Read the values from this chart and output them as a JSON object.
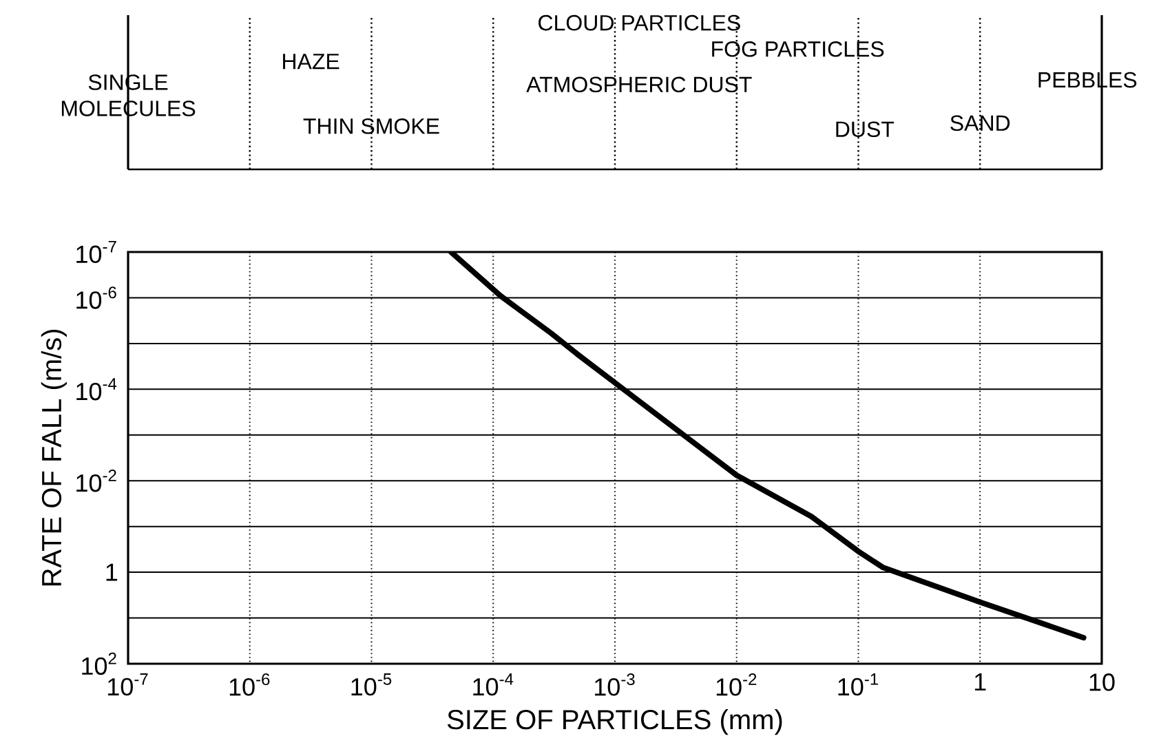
{
  "chart_data": {
    "type": "line",
    "xlabel": "SIZE OF PARTICLES (mm)",
    "ylabel": "RATE OF FALL (m/s)",
    "x": [
      4.5e-05,
      0.000115,
      0.0003,
      0.00049,
      0.001,
      0.01,
      0.041,
      0.1,
      0.16,
      1.0,
      7.1
    ],
    "series": [
      {
        "color": "#000000",
        "values": [
          1e-07,
          9.1e-07,
          6e-06,
          1.7e-05,
          7.2e-05,
          0.0076,
          0.06,
          0.35,
          0.79,
          4.5,
          27
        ]
      }
    ],
    "log": "xy",
    "grid": true,
    "marker": "none",
    "line_style": "solid",
    "xlim": [
      1e-07,
      10
    ],
    "xticks": [
      {
        "value": 1e-07,
        "label": "10$^{-7}$"
      },
      {
        "value": 1e-06,
        "label": "10$^{-6}$"
      },
      {
        "value": 1e-05,
        "label": "10$^{-5}$"
      },
      {
        "value": 0.0001,
        "label": "10$^{-4}$"
      },
      {
        "value": 0.001,
        "label": "10$^{-3}$"
      },
      {
        "value": 0.01,
        "label": "10$^{-2}$"
      },
      {
        "value": 0.1,
        "label": "10$^{-1}$"
      },
      1,
      10
    ],
    "ylim": [
      100,
      1e-07
    ],
    "yticks": [
      {
        "value": 1e-07,
        "label": "10$^{-7}$"
      },
      {
        "value": 1e-06,
        "label": "10$^{-6}$"
      },
      {
        "value": 1e-05,
        "label": null
      },
      {
        "value": 0.0001,
        "label": "10$^{-4}$"
      },
      {
        "value": 0.001,
        "label": null
      },
      {
        "value": 0.01,
        "label": "10$^{-2}$"
      },
      {
        "value": 0.1,
        "label": null
      },
      1,
      {
        "value": 10,
        "label": null
      },
      {
        "value": 100,
        "label": "10$^{2}$"
      }
    ],
    "annotations": [
      "SINGLE MOLECULES",
      "HAZE",
      "THIN SMOKE",
      "CLOUD PARTICLES",
      "ATMOSPHERIC DUST",
      "FOG PARTICLES",
      "DUST",
      "SAND",
      "PEBBLES"
    ]
  }
}
